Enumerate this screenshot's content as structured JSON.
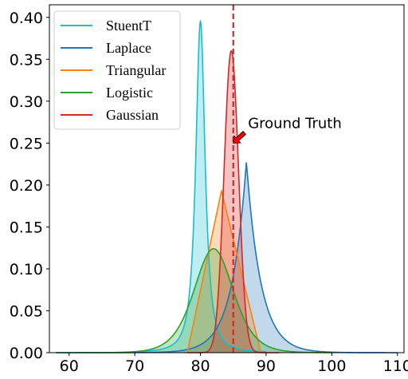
{
  "chart_data": {
    "type": "area",
    "xlim": [
      57,
      111
    ],
    "ylim": [
      0,
      0.415
    ],
    "x_ticks": [
      60,
      70,
      80,
      90,
      100,
      110
    ],
    "y_ticks": [
      0.0,
      0.05,
      0.1,
      0.15,
      0.2,
      0.25,
      0.3,
      0.35,
      0.4
    ],
    "x_tick_labels": [
      "60",
      "70",
      "80",
      "90",
      "100",
      "110"
    ],
    "y_tick_labels": [
      "0.00",
      "0.05",
      "0.10",
      "0.15",
      "0.20",
      "0.25",
      "0.30",
      "0.35",
      "0.40"
    ],
    "grid": false,
    "legend_position": "top-left",
    "series": [
      {
        "name": "StuentT",
        "dist": "studentt",
        "color": "#17becf",
        "fill": "#bfeef5",
        "center": 80.0,
        "peak": 0.395,
        "scale": 0.8,
        "df": 1.5,
        "support": [
          70,
          90
        ]
      },
      {
        "name": "Laplace",
        "dist": "laplace",
        "color": "#1f77b4",
        "fill": "#b3cde3",
        "center": 87.0,
        "peak": 0.228,
        "scale": 2.2,
        "support": [
          58,
          110
        ]
      },
      {
        "name": "Triangular",
        "dist": "triangular",
        "color": "#ff7f0e",
        "fill": "#fed9b5",
        "center": 83.2,
        "peak": 0.193,
        "support": [
          78,
          89.2
        ]
      },
      {
        "name": "Logistic",
        "dist": "logistic",
        "color": "#2ca02c",
        "fill": "#bde3bd",
        "center": 82.0,
        "peak": 0.124,
        "scale": 2.0,
        "support": [
          58,
          100
        ]
      },
      {
        "name": "Gaussian",
        "dist": "gaussian",
        "color": "#d62728",
        "fill": "#f4b4b4",
        "center": 84.7,
        "peak": 0.36,
        "scale": 1.1,
        "support": [
          78,
          92
        ]
      }
    ],
    "reference_line": {
      "x": 85,
      "color": "#d62728"
    },
    "annotation": {
      "text": "Ground Truth",
      "target": [
        85,
        0.25
      ],
      "text_pos": [
        87,
        0.27
      ],
      "arrow_color": "#ff0000"
    }
  }
}
